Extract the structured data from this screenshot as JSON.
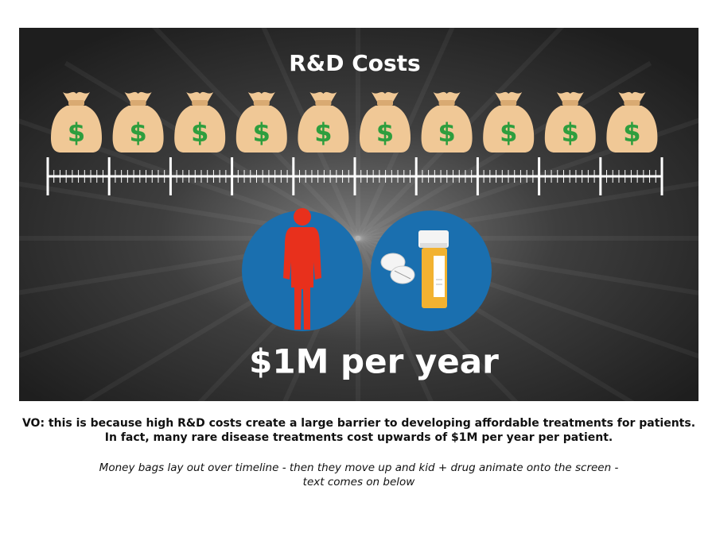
{
  "frame": {
    "title": "R&D Costs",
    "bag_labels": [
      "$",
      "$",
      "$",
      "$",
      "$",
      "$",
      "$",
      "$",
      "$",
      "$"
    ],
    "caption": "$1M per year"
  },
  "voiceover": {
    "lines": [
      "VO: this is because high R&D costs create a large barrier to developing affordable treatments for patients.",
      "In fact, many rare disease treatments cost upwards of $1M per year per patient."
    ]
  },
  "notes": {
    "lines": [
      "Money bags lay out over timeline - then they move up and kid + drug animate onto the screen -",
      "text comes on below"
    ]
  }
}
